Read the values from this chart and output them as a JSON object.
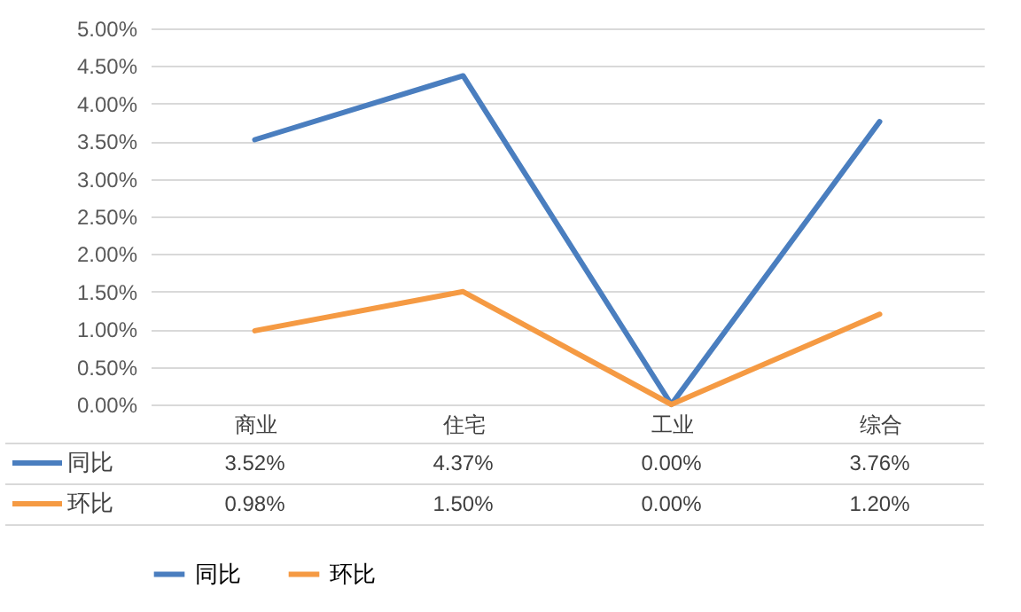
{
  "chart_data": {
    "type": "line",
    "categories": [
      "商业",
      "住宅",
      "工业",
      "综合"
    ],
    "series": [
      {
        "name": "同比",
        "color": "#4a7ebf",
        "values": [
          3.52,
          4.37,
          0.0,
          3.76
        ],
        "value_labels": [
          "3.52%",
          "4.37%",
          "0.00%",
          "3.76%"
        ]
      },
      {
        "name": "环比",
        "color": "#f59a43",
        "values": [
          0.98,
          1.5,
          0.0,
          1.2
        ],
        "value_labels": [
          "0.98%",
          "1.50%",
          "0.00%",
          "1.20%"
        ]
      }
    ],
    "ylim": [
      0,
      5
    ],
    "yticks": [
      {
        "value": 0,
        "label": "0.00%"
      },
      {
        "value": 0.5,
        "label": "0.50%"
      },
      {
        "value": 1,
        "label": "1.00%"
      },
      {
        "value": 1.5,
        "label": "1.50%"
      },
      {
        "value": 2,
        "label": "2.00%"
      },
      {
        "value": 2.5,
        "label": "2.50%"
      },
      {
        "value": 3,
        "label": "3.00%"
      },
      {
        "value": 3.5,
        "label": "3.50%"
      },
      {
        "value": 4,
        "label": "4.00%"
      },
      {
        "value": 4.5,
        "label": "4.50%"
      },
      {
        "value": 5,
        "label": "5.00%"
      }
    ],
    "grid": "y",
    "legend": "bottom",
    "marker": "none",
    "line_style": "solid"
  }
}
